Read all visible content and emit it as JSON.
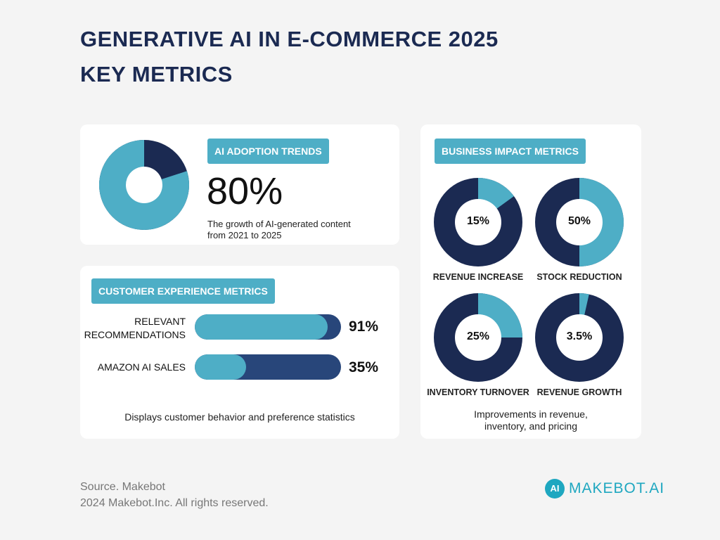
{
  "header": {
    "title_line1": "GENERATIVE AI IN E-COMMERCE 2025",
    "title_line2": "KEY METRICS"
  },
  "colors": {
    "accent": "#4eaec6",
    "dark": "#1b2a52",
    "bar_dark": "#28467a"
  },
  "chart_data": [
    {
      "type": "pie",
      "title": "AI ADOPTION TRENDS",
      "value_label": "80%",
      "values": [
        80,
        20
      ],
      "description": "The growth of AI-generated content from 2021 to 2025",
      "desc_line1": "The growth of AI-generated content",
      "desc_line2": "from 2021 to 2025"
    },
    {
      "type": "bar",
      "title": "CUSTOMER EXPERIENCE METRICS",
      "categories": [
        "RELEVANT RECOMMENDATIONS",
        "AMAZON AI SALES"
      ],
      "cat1_line1": "RELEVANT",
      "cat1_line2": "RECOMMENDATIONS",
      "values": [
        91,
        35
      ],
      "value_labels": [
        "91%",
        "35%"
      ],
      "xlim": [
        0,
        100
      ],
      "caption": "Displays customer behavior and preference statistics"
    },
    {
      "type": "pie",
      "title": "BUSINESS IMPACT METRICS",
      "items": [
        {
          "label": "REVENUE INCREASE",
          "value": 15,
          "value_label": "15%"
        },
        {
          "label": "STOCK REDUCTION",
          "value": 50,
          "value_label": "50%"
        },
        {
          "label": "INVENTORY TURNOVER",
          "value": 25,
          "value_label": "25%"
        },
        {
          "label": "REVENUE GROWTH",
          "value": 3.5,
          "value_label": "3.5%"
        }
      ],
      "caption_line1": "Improvements in revenue,",
      "caption_line2": "inventory, and pricing"
    }
  ],
  "footer": {
    "source": "Source. Makebot",
    "copyright": "2024 Makebot.Inc. All rights reserved.",
    "logo_text": "MAKEBOT.AI",
    "logo_mark": "AI"
  }
}
